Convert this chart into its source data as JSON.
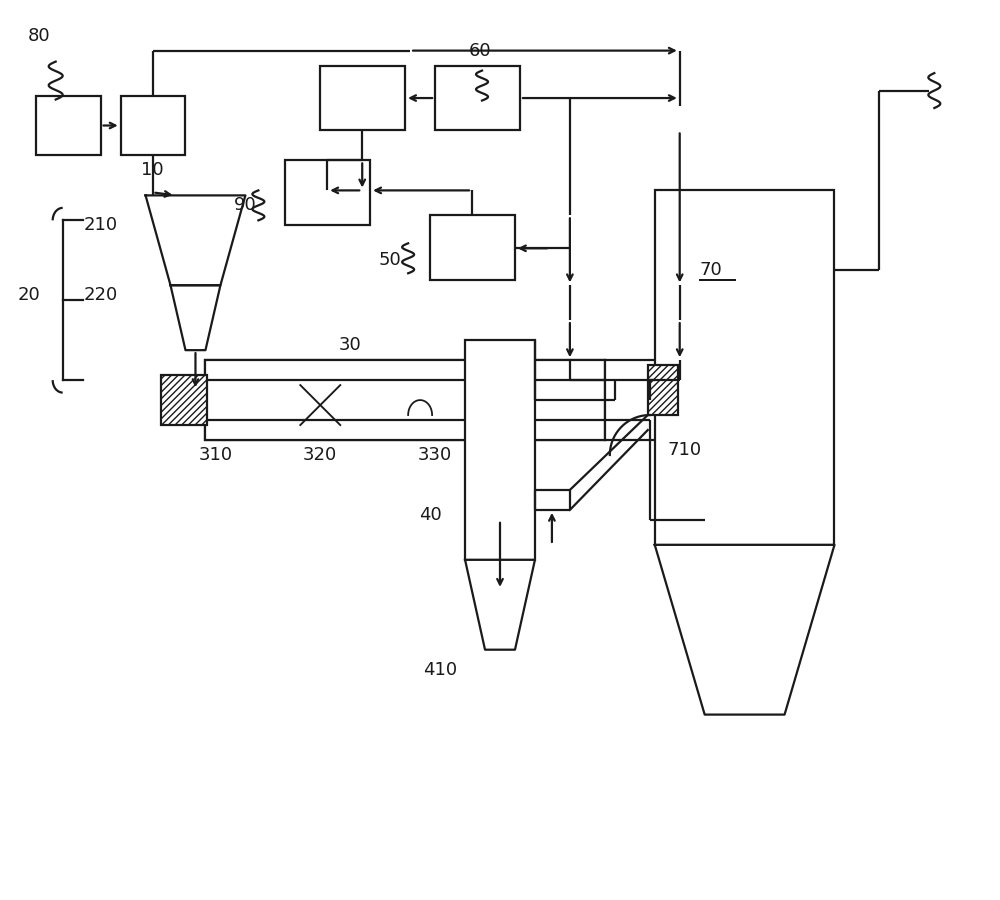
{
  "bg_color": "#ffffff",
  "lc": "#1a1a1a",
  "lw": 1.6,
  "figsize": [
    10.0,
    9.0
  ],
  "dpi": 100,
  "xlim": [
    0,
    10
  ],
  "ylim": [
    0,
    9
  ]
}
